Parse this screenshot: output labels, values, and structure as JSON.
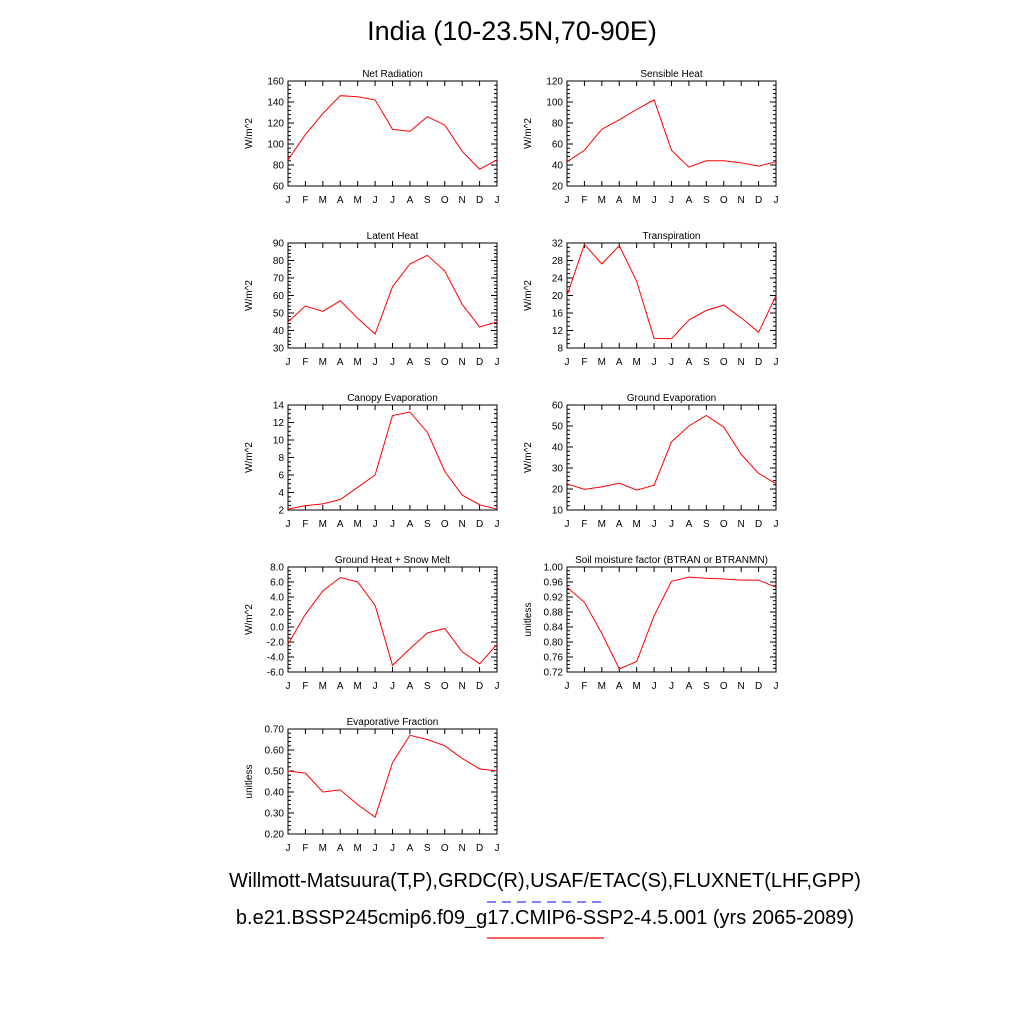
{
  "title": "India (10-23.5N,70-90E)",
  "legend": {
    "obs_label": "Willmott-Matsuura(T,P),GRDC(R),USAF/ETAC(S),FLUXNET(LHF,GPP)",
    "obs_color": "#3333ff",
    "model_label": "b.e21.BSSP245cmip6.f09_g17.CMIP6-SSP2-4.5.001 (yrs 2065-2089)",
    "model_color": "#ff0000"
  },
  "chart_data": [
    {
      "type": "line",
      "title": "Net Radiation",
      "ylabel": "W/m^2",
      "categories": [
        "J",
        "F",
        "M",
        "A",
        "M",
        "J",
        "J",
        "A",
        "S",
        "O",
        "N",
        "D",
        "J"
      ],
      "ylim": [
        60,
        160
      ],
      "yticks": [
        "60",
        "80",
        "100",
        "120",
        "140",
        "160"
      ],
      "yminor": 5,
      "series": [
        {
          "color": "#ff0000",
          "values": [
            85,
            109,
            129,
            146,
            145,
            142,
            114,
            112,
            126,
            118,
            93,
            76,
            85
          ]
        }
      ]
    },
    {
      "type": "line",
      "title": "Sensible Heat",
      "ylabel": "W/m^2",
      "categories": [
        "J",
        "F",
        "M",
        "A",
        "M",
        "J",
        "J",
        "A",
        "S",
        "O",
        "N",
        "D",
        "J"
      ],
      "ylim": [
        20,
        120
      ],
      "yticks": [
        "20",
        "40",
        "60",
        "80",
        "100",
        "120"
      ],
      "yminor": 5,
      "series": [
        {
          "color": "#ff0000",
          "values": [
            43,
            54,
            74,
            83,
            93,
            102,
            54,
            38,
            44,
            44,
            42,
            39,
            43
          ]
        }
      ]
    },
    {
      "type": "line",
      "title": "Latent Heat",
      "ylabel": "W/m^2",
      "categories": [
        "J",
        "F",
        "M",
        "A",
        "M",
        "J",
        "J",
        "A",
        "S",
        "O",
        "N",
        "D",
        "J"
      ],
      "ylim": [
        30,
        90
      ],
      "yticks": [
        "30",
        "40",
        "50",
        "60",
        "70",
        "80",
        "90"
      ],
      "yminor": 5,
      "series": [
        {
          "color": "#ff0000",
          "values": [
            45,
            54,
            51,
            57,
            47,
            38,
            65,
            78,
            83,
            74,
            55,
            42,
            45
          ]
        }
      ]
    },
    {
      "type": "line",
      "title": "Transpiration",
      "ylabel": "W/m^2",
      "categories": [
        "J",
        "F",
        "M",
        "A",
        "M",
        "J",
        "J",
        "A",
        "S",
        "O",
        "N",
        "D",
        "J"
      ],
      "ylim": [
        8,
        32
      ],
      "yticks": [
        "8",
        "12",
        "16",
        "20",
        "24",
        "28",
        "32"
      ],
      "yminor": 4,
      "series": [
        {
          "color": "#ff0000",
          "values": [
            20,
            31.7,
            27.2,
            31.4,
            23.2,
            10.2,
            10.1,
            14.4,
            16.6,
            17.8,
            14.9,
            11.6,
            20
          ]
        }
      ]
    },
    {
      "type": "line",
      "title": "Canopy Evaporation",
      "ylabel": "W/m^2",
      "categories": [
        "J",
        "F",
        "M",
        "A",
        "M",
        "J",
        "J",
        "A",
        "S",
        "O",
        "N",
        "D",
        "J"
      ],
      "ylim": [
        2,
        14
      ],
      "yticks": [
        "2",
        "4",
        "6",
        "8",
        "10",
        "12",
        "14"
      ],
      "yminor": 4,
      "series": [
        {
          "color": "#ff0000",
          "values": [
            2.1,
            2.5,
            2.7,
            3.2,
            4.6,
            6.0,
            12.8,
            13.2,
            10.9,
            6.4,
            3.7,
            2.6,
            2.1
          ]
        }
      ]
    },
    {
      "type": "line",
      "title": "Ground Evaporation",
      "ylabel": "W/m^2",
      "categories": [
        "J",
        "F",
        "M",
        "A",
        "M",
        "J",
        "J",
        "A",
        "S",
        "O",
        "N",
        "D",
        "J"
      ],
      "ylim": [
        10,
        60
      ],
      "yticks": [
        "10",
        "20",
        "30",
        "40",
        "50",
        "60"
      ],
      "yminor": 5,
      "series": [
        {
          "color": "#ff0000",
          "values": [
            22.5,
            19.8,
            21,
            22.8,
            19.5,
            21.8,
            42.5,
            50,
            55,
            49.5,
            36.5,
            27.5,
            22.5
          ]
        }
      ]
    },
    {
      "type": "line",
      "title": "Ground Heat + Snow Melt",
      "ylabel": "W/m^2",
      "categories": [
        "J",
        "F",
        "M",
        "A",
        "M",
        "J",
        "J",
        "A",
        "S",
        "O",
        "N",
        "D",
        "J"
      ],
      "ylim": [
        -6,
        8
      ],
      "yticks": [
        "-6.0",
        "-4.0",
        "-2.0",
        "0.0",
        "2.0",
        "4.0",
        "6.0",
        "8.0"
      ],
      "yminor": 4,
      "series": [
        {
          "color": "#ff0000",
          "values": [
            -2.3,
            1.7,
            4.8,
            6.6,
            6.0,
            2.9,
            -5.1,
            -2.9,
            -0.8,
            -0.2,
            -3.3,
            -4.9,
            -2.3
          ]
        }
      ]
    },
    {
      "type": "line",
      "title": "Soil moisture factor (BTRAN or BTRANMN)",
      "ylabel": "unitless",
      "categories": [
        "J",
        "F",
        "M",
        "A",
        "M",
        "J",
        "J",
        "A",
        "S",
        "O",
        "N",
        "D",
        "J"
      ],
      "ylim": [
        0.72,
        1.0
      ],
      "yticks": [
        "0.72",
        "0.76",
        "0.80",
        "0.84",
        "0.88",
        "0.92",
        "0.96",
        "1.00"
      ],
      "yminor": 4,
      "series": [
        {
          "color": "#ff0000",
          "values": [
            0.946,
            0.906,
            0.823,
            0.728,
            0.748,
            0.87,
            0.962,
            0.973,
            0.97,
            0.968,
            0.965,
            0.965,
            0.946
          ]
        }
      ]
    },
    {
      "type": "line",
      "title": "Evaporative Fraction",
      "ylabel": "unitless",
      "categories": [
        "J",
        "F",
        "M",
        "A",
        "M",
        "J",
        "J",
        "A",
        "S",
        "O",
        "N",
        "D",
        "J"
      ],
      "ylim": [
        0.2,
        0.7
      ],
      "yticks": [
        "0.20",
        "0.30",
        "0.40",
        "0.50",
        "0.60",
        "0.70"
      ],
      "yminor": 5,
      "series": [
        {
          "color": "#ff0000",
          "values": [
            0.5,
            0.49,
            0.4,
            0.41,
            0.34,
            0.28,
            0.54,
            0.67,
            0.65,
            0.62,
            0.56,
            0.51,
            0.5
          ]
        }
      ]
    }
  ]
}
